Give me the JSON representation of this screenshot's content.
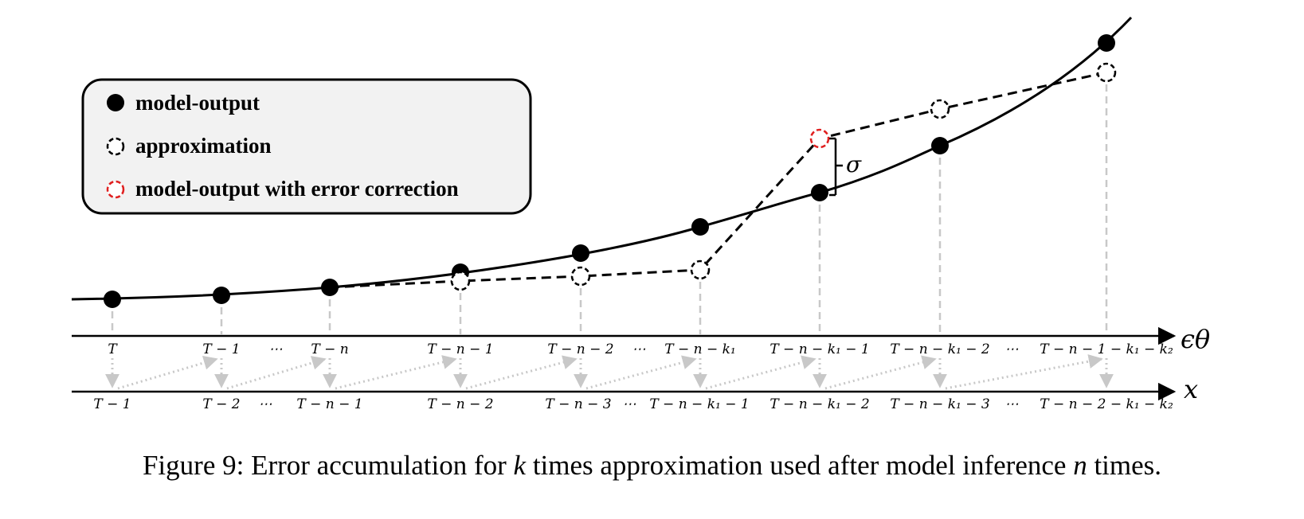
{
  "legend": {
    "items": [
      {
        "label": "model-output",
        "marker": "filled-circle"
      },
      {
        "label": "approximation",
        "marker": "dashed-circle-black"
      },
      {
        "label": "model-output with error correction",
        "marker": "dashed-circle-red"
      }
    ]
  },
  "axes": {
    "top_name": "ϵθ",
    "bottom_name": "x"
  },
  "top_ticks": [
    "T",
    "T − 1",
    "T − n",
    "T − n − 1",
    "T − n − 2",
    "T − n − k₁",
    "T − n − k₁ − 1",
    "T − n − k₁ − 2",
    "T − n − 1 − k₁ − k₂"
  ],
  "top_ellipses": [
    "⋯",
    "⋯",
    "⋯"
  ],
  "bottom_ticks": [
    "T − 1",
    "T − 2",
    "T − n − 1",
    "T − n − 2",
    "T − n − 3",
    "T − n − k₁ − 1",
    "T − n − k₁ − 2",
    "T − n − k₁ − 3",
    "T − n − 2 − k₁ − k₂"
  ],
  "bottom_ellipses": [
    "⋯",
    "⋯",
    "⋯",
    "⋯"
  ],
  "sigma_label": "σ",
  "caption": {
    "prefix": "Figure 9: Error accumulation for ",
    "k": "k",
    "middle": " times approximation used after model inference ",
    "n": "n",
    "suffix": " times."
  },
  "colors": {
    "ink": "#000000",
    "error_marker": "#e02020",
    "guide": "#c8c8c8",
    "legend_fill": "#f2f2f2"
  }
}
